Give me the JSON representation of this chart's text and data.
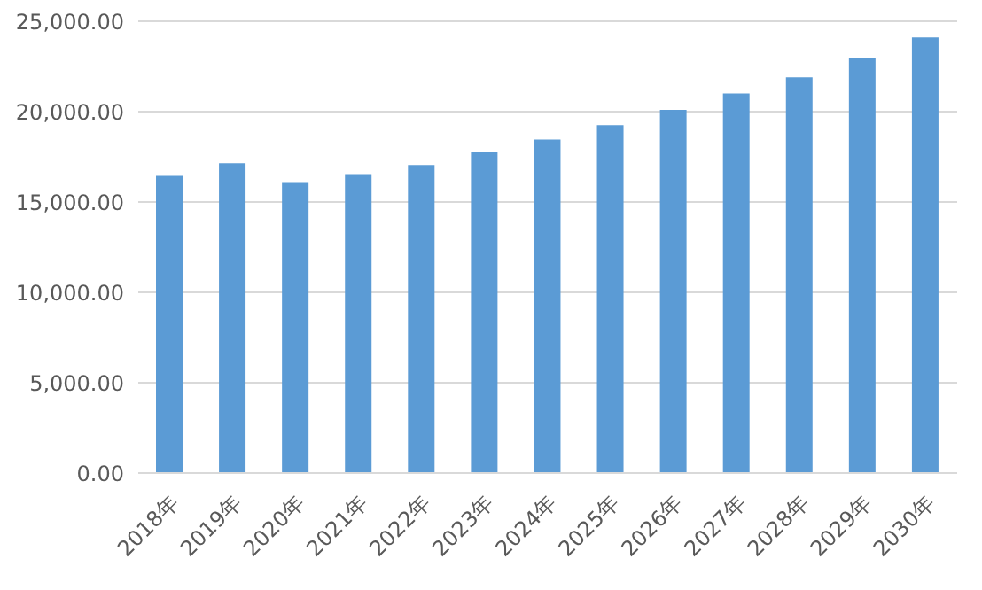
{
  "chart_data": {
    "type": "bar",
    "categories": [
      "2018年",
      "2019年",
      "2020年",
      "2021年",
      "2022年",
      "2023年",
      "2024年",
      "2025年",
      "2026年",
      "2027年",
      "2028年",
      "2029年",
      "2030年"
    ],
    "values": [
      16450,
      17150,
      16050,
      16550,
      17050,
      17750,
      18450,
      19250,
      20100,
      21000,
      21900,
      22950,
      24100
    ],
    "color": "#5b9bd5",
    "ylim": [
      0,
      25000
    ],
    "yticks": [
      {
        "value": 0,
        "label": "0.00"
      },
      {
        "value": 5000,
        "label": "5,000.00"
      },
      {
        "value": 10000,
        "label": "10,000.00"
      },
      {
        "value": 15000,
        "label": "15,000.00"
      },
      {
        "value": 20000,
        "label": "20,000.00"
      },
      {
        "value": 25000,
        "label": "25,000.00"
      }
    ],
    "grid": "y"
  }
}
